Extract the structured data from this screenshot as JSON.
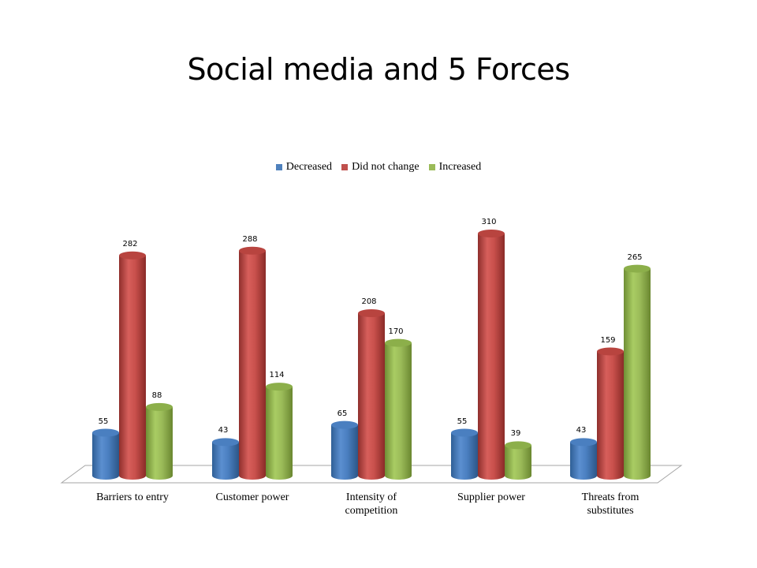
{
  "slide": {
    "title": "Social media and 5 Forces"
  },
  "legend": [
    {
      "label": "Decreased",
      "color": "#4f81bd"
    },
    {
      "label": "Did not change",
      "color": "#c0504d"
    },
    {
      "label": "Increased",
      "color": "#9bbb59"
    }
  ],
  "chart_data": {
    "type": "bar",
    "subtype": "3d-cylinder-clustered",
    "title": "Social media and 5 Forces",
    "categories": [
      "Barriers to entry",
      "Customer power",
      "Intensity of\ncompetition",
      "Supplier power",
      "Threats from\nsubstitutes"
    ],
    "series": [
      {
        "name": "Decreased",
        "color": "#4f81bd",
        "values": [
          55,
          43,
          65,
          55,
          43
        ]
      },
      {
        "name": "Did not change",
        "color": "#c0504d",
        "values": [
          282,
          288,
          208,
          310,
          159
        ]
      },
      {
        "name": "Increased",
        "color": "#9bbb59",
        "values": [
          88,
          114,
          170,
          39,
          265
        ]
      }
    ],
    "xlabel": "",
    "ylabel": "",
    "ylim": [
      0,
      310
    ],
    "grid": false,
    "legend_position": "top",
    "data_labels": true
  }
}
